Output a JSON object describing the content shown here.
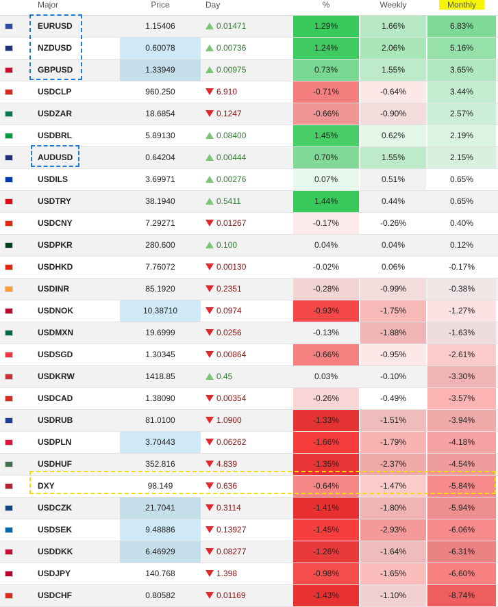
{
  "headers": {
    "major": "Major",
    "price": "Price",
    "day": "Day",
    "pct": "%",
    "weekly": "Weekly",
    "monthly": "Monthly"
  },
  "rows": [
    {
      "flag": "eu",
      "symbol": "EURUSD",
      "price": "1.15406",
      "price_highlight": "",
      "dir": "up",
      "day": "0.01471",
      "pct": "1.29%",
      "weekly": "1.66%",
      "monthly": "6.83%",
      "pct_bg": "#37c95a",
      "weekly_bg": "#b6e8c3",
      "monthly_bg": "#7fd996",
      "flag_color": "#2b4aa0"
    },
    {
      "flag": "nz",
      "symbol": "NZDUSD",
      "price": "0.60078",
      "price_highlight": "h1",
      "dir": "up",
      "day": "0.00736",
      "pct": "1.24%",
      "weekly": "2.06%",
      "monthly": "5.16%",
      "pct_bg": "#3fcb60",
      "weekly_bg": "#a9e6b8",
      "monthly_bg": "#96e0a9",
      "flag_color": "#1f2f78"
    },
    {
      "flag": "gb",
      "symbol": "GBPUSD",
      "price": "1.33949",
      "price_highlight": "h2",
      "dir": "up",
      "day": "0.00975",
      "pct": "0.73%",
      "weekly": "1.55%",
      "monthly": "3.65%",
      "pct_bg": "#79d891",
      "weekly_bg": "#bdeac9",
      "monthly_bg": "#b2e8bf",
      "flag_color": "#c8102e"
    },
    {
      "flag": "cl",
      "symbol": "USDCLP",
      "price": "960.250",
      "price_highlight": "",
      "dir": "down",
      "day": "6.910",
      "pct": "-0.71%",
      "weekly": "-0.64%",
      "monthly": "3.44%",
      "pct_bg": "#f57f7f",
      "weekly_bg": "#fde8e8",
      "monthly_bg": "#c3ecd0",
      "flag_color": "#d52b1e"
    },
    {
      "flag": "za",
      "symbol": "USDZAR",
      "price": "18.6854",
      "price_highlight": "",
      "dir": "down",
      "day": "0.1247",
      "pct": "-0.66%",
      "weekly": "-0.90%",
      "monthly": "2.57%",
      "pct_bg": "#ef9595",
      "weekly_bg": "#f3dcdc",
      "monthly_bg": "#cdeed6",
      "flag_color": "#007a4d"
    },
    {
      "flag": "br",
      "symbol": "USDBRL",
      "price": "5.89130",
      "price_highlight": "",
      "dir": "up",
      "day": "0.08400",
      "pct": "1.45%",
      "weekly": "0.62%",
      "monthly": "2.19%",
      "pct_bg": "#47ce67",
      "weekly_bg": "#e3f6e8",
      "monthly_bg": "#daf4e1",
      "flag_color": "#009c3b"
    },
    {
      "flag": "au",
      "symbol": "AUDUSD",
      "price": "0.64204",
      "price_highlight": "",
      "dir": "up",
      "day": "0.00444",
      "pct": "0.70%",
      "weekly": "1.55%",
      "monthly": "2.15%",
      "pct_bg": "#81d998",
      "weekly_bg": "#bdeac9",
      "monthly_bg": "#d7f1de",
      "flag_color": "#1f2f78"
    },
    {
      "flag": "il",
      "symbol": "USDILS",
      "price": "3.69971",
      "price_highlight": "",
      "dir": "up",
      "day": "0.00276",
      "pct": "0.07%",
      "weekly": "0.51%",
      "monthly": "0.65%",
      "pct_bg": "#e9f8ed",
      "weekly_bg": "#f2f2f2",
      "monthly_bg": "#ffffff",
      "flag_color": "#0038b8"
    },
    {
      "flag": "tr",
      "symbol": "USDTRY",
      "price": "38.1940",
      "price_highlight": "",
      "dir": "up",
      "day": "0.5411",
      "pct": "1.44%",
      "weekly": "0.44%",
      "monthly": "0.65%",
      "pct_bg": "#37c95a",
      "weekly_bg": "#f2f2f2",
      "monthly_bg": "#f2f2f2",
      "flag_color": "#e30a17"
    },
    {
      "flag": "cn",
      "symbol": "USDCNY",
      "price": "7.29271",
      "price_highlight": "",
      "dir": "down",
      "day": "0.01267",
      "pct": "-0.17%",
      "weekly": "-0.26%",
      "monthly": "0.40%",
      "pct_bg": "#fdeaea",
      "weekly_bg": "#ffffff",
      "monthly_bg": "#ffffff",
      "flag_color": "#de2910"
    },
    {
      "flag": "pk",
      "symbol": "USDPKR",
      "price": "280.600",
      "price_highlight": "",
      "dir": "up",
      "day": "0.100",
      "pct": "0.04%",
      "weekly": "0.04%",
      "monthly": "0.12%",
      "pct_bg": "#f2f2f2",
      "weekly_bg": "#f2f2f2",
      "monthly_bg": "#f2f2f2",
      "flag_color": "#01411c"
    },
    {
      "flag": "hk",
      "symbol": "USDHKD",
      "price": "7.76072",
      "price_highlight": "",
      "dir": "down",
      "day": "0.00130",
      "pct": "-0.02%",
      "weekly": "0.06%",
      "monthly": "-0.17%",
      "pct_bg": "#ffffff",
      "weekly_bg": "#ffffff",
      "monthly_bg": "#ffffff",
      "flag_color": "#de2910"
    },
    {
      "flag": "in",
      "symbol": "USDINR",
      "price": "85.1920",
      "price_highlight": "",
      "dir": "down",
      "day": "0.2351",
      "pct": "-0.28%",
      "weekly": "-0.99%",
      "monthly": "-0.38%",
      "pct_bg": "#f3d4d4",
      "weekly_bg": "#f3dcdc",
      "monthly_bg": "#f1e6e6",
      "flag_color": "#ff9933"
    },
    {
      "flag": "no",
      "symbol": "USDNOK",
      "price": "10.38710",
      "price_highlight": "h1",
      "dir": "down",
      "day": "0.0974",
      "pct": "-0.93%",
      "weekly": "-1.75%",
      "monthly": "-1.27%",
      "pct_bg": "#f54848",
      "weekly_bg": "#f7b8b8",
      "monthly_bg": "#fbe1e1",
      "flag_color": "#ba0c2f"
    },
    {
      "flag": "mx",
      "symbol": "USDMXN",
      "price": "19.6999",
      "price_highlight": "",
      "dir": "down",
      "day": "0.0256",
      "pct": "-0.13%",
      "weekly": "-1.88%",
      "monthly": "-1.63%",
      "pct_bg": "#f2f2f2",
      "weekly_bg": "#f0b6b6",
      "monthly_bg": "#efdcdc",
      "flag_color": "#006847"
    },
    {
      "flag": "sg",
      "symbol": "USDSGD",
      "price": "1.30345",
      "price_highlight": "",
      "dir": "down",
      "day": "0.00864",
      "pct": "-0.66%",
      "weekly": "-0.95%",
      "monthly": "-2.61%",
      "pct_bg": "#f58080",
      "weekly_bg": "#fde8e8",
      "monthly_bg": "#fbcaca",
      "flag_color": "#ef3340"
    },
    {
      "flag": "kr",
      "symbol": "USDKRW",
      "price": "1418.85",
      "price_highlight": "",
      "dir": "up",
      "day": "0.45",
      "pct": "0.03%",
      "weekly": "-0.10%",
      "monthly": "-3.30%",
      "pct_bg": "#f2f2f2",
      "weekly_bg": "#f2f2f2",
      "monthly_bg": "#f1b4b4",
      "flag_color": "#cd2e3a"
    },
    {
      "flag": "ca",
      "symbol": "USDCAD",
      "price": "1.38090",
      "price_highlight": "",
      "dir": "down",
      "day": "0.00354",
      "pct": "-0.26%",
      "weekly": "-0.49%",
      "monthly": "-3.57%",
      "pct_bg": "#fbd6d6",
      "weekly_bg": "#ffffff",
      "monthly_bg": "#fbb3b3",
      "flag_color": "#d52b1e"
    },
    {
      "flag": "ru",
      "symbol": "USDRUB",
      "price": "81.0100",
      "price_highlight": "",
      "dir": "down",
      "day": "1.0900",
      "pct": "-1.33%",
      "weekly": "-1.51%",
      "monthly": "-3.94%",
      "pct_bg": "#e53333",
      "weekly_bg": "#efbcbc",
      "monthly_bg": "#efa9a9",
      "flag_color": "#1c3f94"
    },
    {
      "flag": "pl",
      "symbol": "USDPLN",
      "price": "3.70443",
      "price_highlight": "h1",
      "dir": "down",
      "day": "0.06262",
      "pct": "-1.66%",
      "weekly": "-1.79%",
      "monthly": "-4.18%",
      "pct_bg": "#f73c3c",
      "weekly_bg": "#fab3b3",
      "monthly_bg": "#f8a3a3",
      "flag_color": "#dc143c"
    },
    {
      "flag": "hu",
      "symbol": "USDHUF",
      "price": "352.816",
      "price_highlight": "",
      "dir": "down",
      "day": "4.839",
      "pct": "-1.35%",
      "weekly": "-2.37%",
      "monthly": "-4.54%",
      "pct_bg": "#e83434",
      "weekly_bg": "#efa9a9",
      "monthly_bg": "#ef9c9c",
      "flag_color": "#436f4d"
    },
    {
      "flag": "us",
      "symbol": "DXY",
      "price": "98.149",
      "price_highlight": "",
      "dir": "down",
      "day": "0.636",
      "pct": "-0.64%",
      "weekly": "-1.47%",
      "monthly": "-5.84%",
      "pct_bg": "#f58787",
      "weekly_bg": "#fccccc",
      "monthly_bg": "#f78a8a",
      "flag_color": "#b22234"
    },
    {
      "flag": "cz",
      "symbol": "USDCZK",
      "price": "21.7041",
      "price_highlight": "h2",
      "dir": "down",
      "day": "0.3114",
      "pct": "-1.41%",
      "weekly": "-1.80%",
      "monthly": "-5.94%",
      "pct_bg": "#e83030",
      "weekly_bg": "#f0b4b4",
      "monthly_bg": "#ef8e8e",
      "flag_color": "#11457e"
    },
    {
      "flag": "se",
      "symbol": "USDSEK",
      "price": "9.48886",
      "price_highlight": "h1",
      "dir": "down",
      "day": "0.13927",
      "pct": "-1.45%",
      "weekly": "-2.93%",
      "monthly": "-6.06%",
      "pct_bg": "#f73e3e",
      "weekly_bg": "#f59a9a",
      "monthly_bg": "#f78a8a",
      "flag_color": "#006aa7"
    },
    {
      "flag": "dk",
      "symbol": "USDDKK",
      "price": "6.46929",
      "price_highlight": "h2",
      "dir": "down",
      "day": "0.08277",
      "pct": "-1.26%",
      "weekly": "-1.64%",
      "monthly": "-6.31%",
      "pct_bg": "#e83a3a",
      "weekly_bg": "#efbcbc",
      "monthly_bg": "#ec8383",
      "flag_color": "#c60c30"
    },
    {
      "flag": "jp",
      "symbol": "USDJPY",
      "price": "140.768",
      "price_highlight": "",
      "dir": "down",
      "day": "1.398",
      "pct": "-0.98%",
      "weekly": "-1.65%",
      "monthly": "-6.60%",
      "pct_bg": "#f54c4c",
      "weekly_bg": "#fbbcbc",
      "monthly_bg": "#f98080",
      "flag_color": "#bc002d"
    },
    {
      "flag": "ch",
      "symbol": "USDCHF",
      "price": "0.80582",
      "price_highlight": "",
      "dir": "down",
      "day": "0.01169",
      "pct": "-1.43%",
      "weekly": "-1.10%",
      "monthly": "-8.74%",
      "pct_bg": "#e83232",
      "weekly_bg": "#f2d0d0",
      "monthly_bg": "#ef5e5e",
      "flag_color": "#da291c"
    }
  ]
}
